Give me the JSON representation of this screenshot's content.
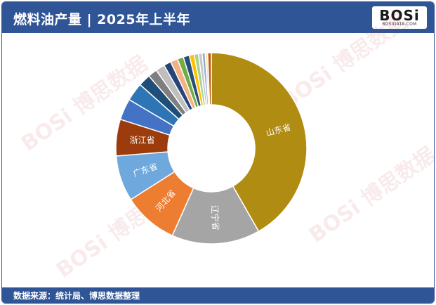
{
  "title": "燃料油产量 | 2025年上半年",
  "logo": {
    "main": "BOSi",
    "sub": "BOSIDATA.COM"
  },
  "source": "数据来源：统计局、博思数据整理",
  "watermark": "BOSi 博思数据",
  "chart_data": {
    "type": "pie",
    "variant": "doughnut",
    "labels": [
      "山东省",
      "辽宁省",
      "河北省",
      "广东省",
      "浙江省",
      "",
      "",
      "",
      "",
      "",
      "",
      "",
      "",
      "",
      "",
      "",
      "",
      "",
      "",
      ""
    ],
    "values": [
      40.5,
      14.5,
      9.0,
      7.5,
      6.0,
      3.5,
      3.0,
      2.0,
      1.5,
      1.5,
      1.2,
      1.2,
      1.0,
      1.0,
      0.8,
      0.7,
      0.6,
      0.5,
      0.4,
      0.6
    ],
    "colors": [
      "#b08c12",
      "#a5a5a5",
      "#ed7d31",
      "#6fa8dc",
      "#9c3c0c",
      "#4472c4",
      "#2e75b6",
      "#1f4e79",
      "#7f7f7f",
      "#bfbfbf",
      "#264478",
      "#f4b183",
      "#70ad47",
      "#264f78",
      "#ffc000",
      "#a9d18e",
      "#c9c9c9",
      "#8faadc",
      "#ffe699",
      "#c55a11"
    ],
    "start_angle_deg": 0,
    "direction": "clockwise"
  }
}
